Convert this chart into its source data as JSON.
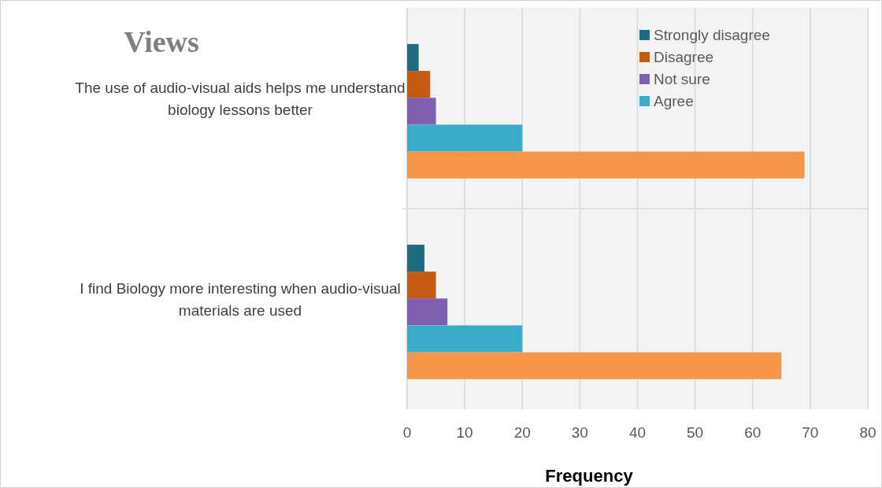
{
  "chart_data": {
    "type": "bar",
    "orientation": "horizontal",
    "title": "Views",
    "xlabel": "Frequency",
    "categories": [
      "The use of audio-visual aids helps me understand biology lessons better",
      "I find Biology more interesting when audio-visual materials are used"
    ],
    "series": [
      {
        "name": "Strongly disagree",
        "color": "#1f6b82",
        "values": [
          2,
          3
        ]
      },
      {
        "name": "Disagree",
        "color": "#c55a11",
        "values": [
          4,
          5
        ]
      },
      {
        "name": "Not sure",
        "color": "#7f5fb0",
        "values": [
          5,
          7
        ]
      },
      {
        "name": "Agree",
        "color": "#3aabc8",
        "values": [
          20,
          20
        ]
      },
      {
        "color": "#f79646",
        "values": [
          69,
          65
        ]
      }
    ],
    "xlim": [
      0,
      80
    ],
    "xticks": [
      0,
      10,
      20,
      30,
      40,
      50,
      60,
      70,
      80
    ],
    "grid": "x",
    "legend": "top right"
  }
}
